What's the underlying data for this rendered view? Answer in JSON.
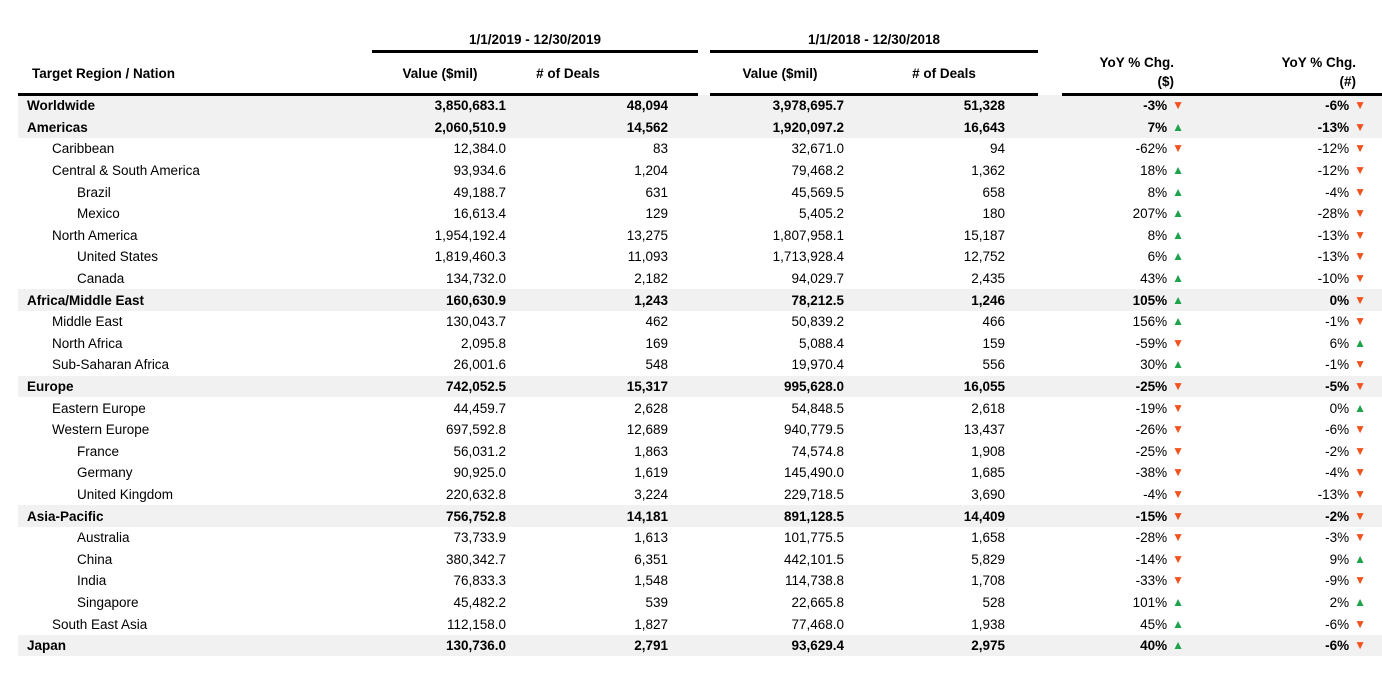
{
  "chart_data": {
    "type": "table",
    "header": {
      "region": "Target Region / Nation",
      "period_2019": "1/1/2019 - 12/30/2019",
      "period_2018": "1/1/2018 - 12/30/2018",
      "value_2019": "Value ($mil)",
      "deals_2019": "# of Deals",
      "value_2018": "Value ($mil)",
      "deals_2018": "# of Deals",
      "yoy_value_line1": "YoY % Chg.",
      "yoy_value_line2": "($)",
      "yoy_deals_line1": "YoY % Chg.",
      "yoy_deals_line2": "(#)"
    },
    "colors": {
      "up_triangle": "#1FA24C",
      "down_triangle": "#F4511E",
      "section_row_band": "#F1F1F1"
    },
    "rows": [
      {
        "region": "Worldwide",
        "indent": 0,
        "section": true,
        "value_2019": "3,850,683.1",
        "deals_2019": "48,094",
        "value_2018": "3,978,695.7",
        "deals_2018": "51,328",
        "yoy_value": "-3%",
        "yoy_value_dir": "down",
        "yoy_deals": "-6%",
        "yoy_deals_dir": "down"
      },
      {
        "region": "Americas",
        "indent": 0,
        "section": true,
        "value_2019": "2,060,510.9",
        "deals_2019": "14,562",
        "value_2018": "1,920,097.2",
        "deals_2018": "16,643",
        "yoy_value": "7%",
        "yoy_value_dir": "up",
        "yoy_deals": "-13%",
        "yoy_deals_dir": "down"
      },
      {
        "region": "Caribbean",
        "indent": 1,
        "section": false,
        "value_2019": "12,384.0",
        "deals_2019": "83",
        "value_2018": "32,671.0",
        "deals_2018": "94",
        "yoy_value": "-62%",
        "yoy_value_dir": "down",
        "yoy_deals": "-12%",
        "yoy_deals_dir": "down"
      },
      {
        "region": "Central & South America",
        "indent": 1,
        "section": false,
        "value_2019": "93,934.6",
        "deals_2019": "1,204",
        "value_2018": "79,468.2",
        "deals_2018": "1,362",
        "yoy_value": "18%",
        "yoy_value_dir": "up",
        "yoy_deals": "-12%",
        "yoy_deals_dir": "down"
      },
      {
        "region": "Brazil",
        "indent": 2,
        "section": false,
        "value_2019": "49,188.7",
        "deals_2019": "631",
        "value_2018": "45,569.5",
        "deals_2018": "658",
        "yoy_value": "8%",
        "yoy_value_dir": "up",
        "yoy_deals": "-4%",
        "yoy_deals_dir": "down"
      },
      {
        "region": "Mexico",
        "indent": 2,
        "section": false,
        "value_2019": "16,613.4",
        "deals_2019": "129",
        "value_2018": "5,405.2",
        "deals_2018": "180",
        "yoy_value": "207%",
        "yoy_value_dir": "up",
        "yoy_deals": "-28%",
        "yoy_deals_dir": "down"
      },
      {
        "region": "North America",
        "indent": 1,
        "section": false,
        "value_2019": "1,954,192.4",
        "deals_2019": "13,275",
        "value_2018": "1,807,958.1",
        "deals_2018": "15,187",
        "yoy_value": "8%",
        "yoy_value_dir": "up",
        "yoy_deals": "-13%",
        "yoy_deals_dir": "down"
      },
      {
        "region": "United States",
        "indent": 2,
        "section": false,
        "value_2019": "1,819,460.3",
        "deals_2019": "11,093",
        "value_2018": "1,713,928.4",
        "deals_2018": "12,752",
        "yoy_value": "6%",
        "yoy_value_dir": "up",
        "yoy_deals": "-13%",
        "yoy_deals_dir": "down"
      },
      {
        "region": "Canada",
        "indent": 2,
        "section": false,
        "value_2019": "134,732.0",
        "deals_2019": "2,182",
        "value_2018": "94,029.7",
        "deals_2018": "2,435",
        "yoy_value": "43%",
        "yoy_value_dir": "up",
        "yoy_deals": "-10%",
        "yoy_deals_dir": "down"
      },
      {
        "region": "Africa/Middle East",
        "indent": 0,
        "section": true,
        "value_2019": "160,630.9",
        "deals_2019": "1,243",
        "value_2018": "78,212.5",
        "deals_2018": "1,246",
        "yoy_value": "105%",
        "yoy_value_dir": "up",
        "yoy_deals": "0%",
        "yoy_deals_dir": "down"
      },
      {
        "region": "Middle East",
        "indent": 1,
        "section": false,
        "value_2019": "130,043.7",
        "deals_2019": "462",
        "value_2018": "50,839.2",
        "deals_2018": "466",
        "yoy_value": "156%",
        "yoy_value_dir": "up",
        "yoy_deals": "-1%",
        "yoy_deals_dir": "down"
      },
      {
        "region": "North Africa",
        "indent": 1,
        "section": false,
        "value_2019": "2,095.8",
        "deals_2019": "169",
        "value_2018": "5,088.4",
        "deals_2018": "159",
        "yoy_value": "-59%",
        "yoy_value_dir": "down",
        "yoy_deals": "6%",
        "yoy_deals_dir": "up"
      },
      {
        "region": "Sub-Saharan Africa",
        "indent": 1,
        "section": false,
        "value_2019": "26,001.6",
        "deals_2019": "548",
        "value_2018": "19,970.4",
        "deals_2018": "556",
        "yoy_value": "30%",
        "yoy_value_dir": "up",
        "yoy_deals": "-1%",
        "yoy_deals_dir": "down"
      },
      {
        "region": "Europe",
        "indent": 0,
        "section": true,
        "value_2019": "742,052.5",
        "deals_2019": "15,317",
        "value_2018": "995,628.0",
        "deals_2018": "16,055",
        "yoy_value": "-25%",
        "yoy_value_dir": "down",
        "yoy_deals": "-5%",
        "yoy_deals_dir": "down"
      },
      {
        "region": "Eastern Europe",
        "indent": 1,
        "section": false,
        "value_2019": "44,459.7",
        "deals_2019": "2,628",
        "value_2018": "54,848.5",
        "deals_2018": "2,618",
        "yoy_value": "-19%",
        "yoy_value_dir": "down",
        "yoy_deals": "0%",
        "yoy_deals_dir": "up"
      },
      {
        "region": "Western Europe",
        "indent": 1,
        "section": false,
        "value_2019": "697,592.8",
        "deals_2019": "12,689",
        "value_2018": "940,779.5",
        "deals_2018": "13,437",
        "yoy_value": "-26%",
        "yoy_value_dir": "down",
        "yoy_deals": "-6%",
        "yoy_deals_dir": "down"
      },
      {
        "region": "France",
        "indent": 2,
        "section": false,
        "value_2019": "56,031.2",
        "deals_2019": "1,863",
        "value_2018": "74,574.8",
        "deals_2018": "1,908",
        "yoy_value": "-25%",
        "yoy_value_dir": "down",
        "yoy_deals": "-2%",
        "yoy_deals_dir": "down"
      },
      {
        "region": "Germany",
        "indent": 2,
        "section": false,
        "value_2019": "90,925.0",
        "deals_2019": "1,619",
        "value_2018": "145,490.0",
        "deals_2018": "1,685",
        "yoy_value": "-38%",
        "yoy_value_dir": "down",
        "yoy_deals": "-4%",
        "yoy_deals_dir": "down"
      },
      {
        "region": "United Kingdom",
        "indent": 2,
        "section": false,
        "value_2019": "220,632.8",
        "deals_2019": "3,224",
        "value_2018": "229,718.5",
        "deals_2018": "3,690",
        "yoy_value": "-4%",
        "yoy_value_dir": "down",
        "yoy_deals": "-13%",
        "yoy_deals_dir": "down"
      },
      {
        "region": "Asia-Pacific",
        "indent": 0,
        "section": true,
        "value_2019": "756,752.8",
        "deals_2019": "14,181",
        "value_2018": "891,128.5",
        "deals_2018": "14,409",
        "yoy_value": "-15%",
        "yoy_value_dir": "down",
        "yoy_deals": "-2%",
        "yoy_deals_dir": "down"
      },
      {
        "region": "Australia",
        "indent": 2,
        "section": false,
        "value_2019": "73,733.9",
        "deals_2019": "1,613",
        "value_2018": "101,775.5",
        "deals_2018": "1,658",
        "yoy_value": "-28%",
        "yoy_value_dir": "down",
        "yoy_deals": "-3%",
        "yoy_deals_dir": "down"
      },
      {
        "region": "China",
        "indent": 2,
        "section": false,
        "value_2019": "380,342.7",
        "deals_2019": "6,351",
        "value_2018": "442,101.5",
        "deals_2018": "5,829",
        "yoy_value": "-14%",
        "yoy_value_dir": "down",
        "yoy_deals": "9%",
        "yoy_deals_dir": "up"
      },
      {
        "region": "India",
        "indent": 2,
        "section": false,
        "value_2019": "76,833.3",
        "deals_2019": "1,548",
        "value_2018": "114,738.8",
        "deals_2018": "1,708",
        "yoy_value": "-33%",
        "yoy_value_dir": "down",
        "yoy_deals": "-9%",
        "yoy_deals_dir": "down"
      },
      {
        "region": "Singapore",
        "indent": 2,
        "section": false,
        "value_2019": "45,482.2",
        "deals_2019": "539",
        "value_2018": "22,665.8",
        "deals_2018": "528",
        "yoy_value": "101%",
        "yoy_value_dir": "up",
        "yoy_deals": "2%",
        "yoy_deals_dir": "up"
      },
      {
        "region": "South East Asia",
        "indent": 1,
        "section": false,
        "value_2019": "112,158.0",
        "deals_2019": "1,827",
        "value_2018": "77,468.0",
        "deals_2018": "1,938",
        "yoy_value": "45%",
        "yoy_value_dir": "up",
        "yoy_deals": "-6%",
        "yoy_deals_dir": "down"
      },
      {
        "region": "Japan",
        "indent": 0,
        "section": true,
        "value_2019": "130,736.0",
        "deals_2019": "2,791",
        "value_2018": "93,629.4",
        "deals_2018": "2,975",
        "yoy_value": "40%",
        "yoy_value_dir": "up",
        "yoy_deals": "-6%",
        "yoy_deals_dir": "down"
      }
    ]
  }
}
